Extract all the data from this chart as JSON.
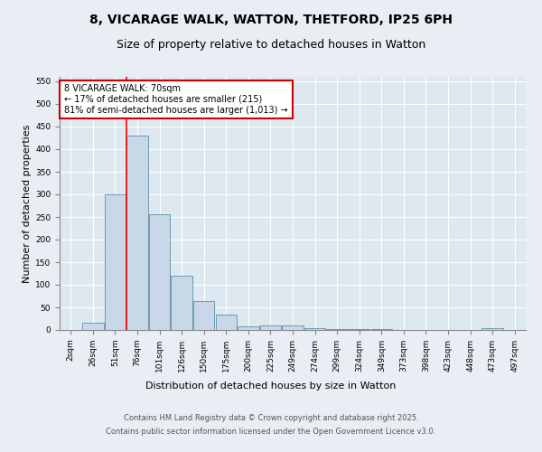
{
  "title_line1": "8, VICARAGE WALK, WATTON, THETFORD, IP25 6PH",
  "title_line2": "Size of property relative to detached houses in Watton",
  "xlabel": "Distribution of detached houses by size in Watton",
  "ylabel": "Number of detached properties",
  "categories": [
    "2sqm",
    "26sqm",
    "51sqm",
    "76sqm",
    "101sqm",
    "126sqm",
    "150sqm",
    "175sqm",
    "200sqm",
    "225sqm",
    "249sqm",
    "274sqm",
    "299sqm",
    "324sqm",
    "349sqm",
    "373sqm",
    "398sqm",
    "423sqm",
    "448sqm",
    "473sqm",
    "497sqm"
  ],
  "values": [
    0,
    17,
    300,
    430,
    255,
    120,
    65,
    35,
    8,
    10,
    10,
    5,
    3,
    2,
    2,
    0,
    0,
    0,
    0,
    5,
    0
  ],
  "bar_color": "#c8d8e8",
  "bar_edge_color": "#5b8fa8",
  "red_line_x": 2.5,
  "red_line_label": "8 VICARAGE WALK: 70sqm",
  "annotation_line2": "← 17% of detached houses are smaller (215)",
  "annotation_line3": "81% of semi-detached houses are larger (1,013) →",
  "annotation_box_color": "#ffffff",
  "annotation_box_edge": "#cc0000",
  "ylim": [
    0,
    560
  ],
  "yticks": [
    0,
    50,
    100,
    150,
    200,
    250,
    300,
    350,
    400,
    450,
    500,
    550
  ],
  "background_color": "#dde8f0",
  "fig_background_color": "#e8eef4",
  "footer_line1": "Contains HM Land Registry data © Crown copyright and database right 2025.",
  "footer_line2": "Contains public sector information licensed under the Open Government Licence v3.0.",
  "title_fontsize": 10,
  "subtitle_fontsize": 9,
  "axis_label_fontsize": 8,
  "tick_fontsize": 6.5,
  "footer_fontsize": 6,
  "annotation_fontsize": 7
}
